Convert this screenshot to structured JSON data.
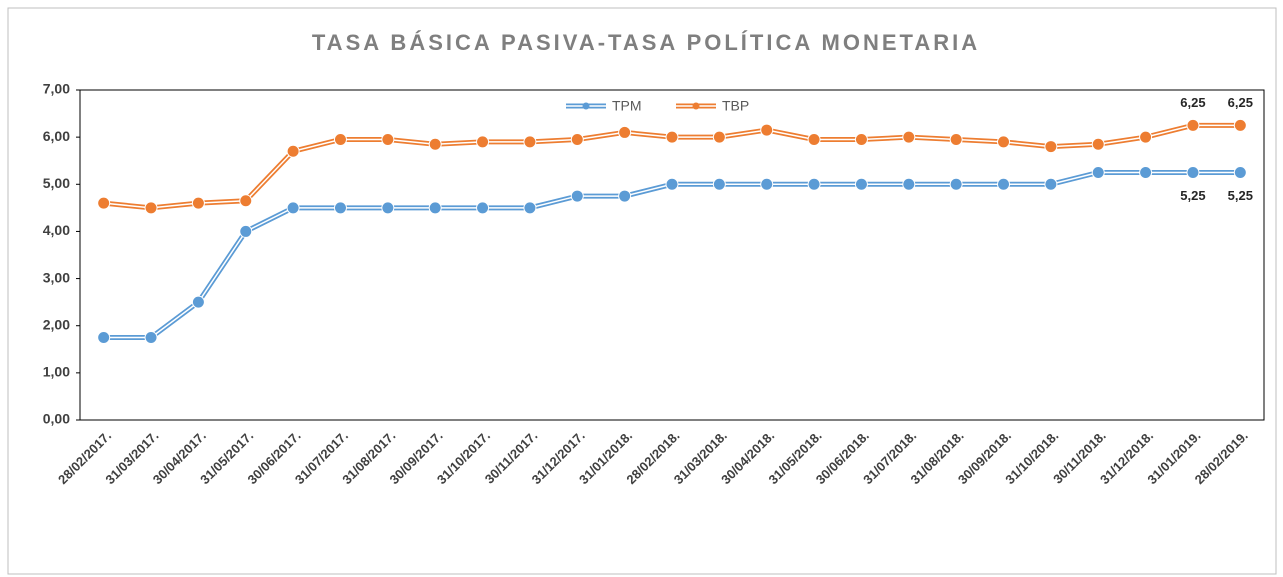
{
  "chart_data": {
    "type": "line",
    "title": "TASA BÁSICA PASIVA-TASA POLÍTICA MONETARIA",
    "categories": [
      "28/02/2017.",
      "31/03/2017.",
      "30/04/2017.",
      "31/05/2017.",
      "30/06/2017.",
      "31/07/2017.",
      "31/08/2017.",
      "30/09/2017.",
      "31/10/2017.",
      "30/11/2017.",
      "31/12/2017.",
      "31/01/2018.",
      "28/02/2018.",
      "31/03/2018.",
      "30/04/2018.",
      "31/05/2018.",
      "30/06/2018.",
      "31/07/2018.",
      "31/08/2018.",
      "30/09/2018.",
      "31/10/2018.",
      "30/11/2018.",
      "31/12/2018.",
      "31/01/2019.",
      "28/02/2019."
    ],
    "series": [
      {
        "name": "TPM",
        "color": "#5b9bd5",
        "values": [
          1.75,
          1.75,
          2.5,
          4.0,
          4.5,
          4.5,
          4.5,
          4.5,
          4.5,
          4.5,
          4.75,
          4.75,
          5.0,
          5.0,
          5.0,
          5.0,
          5.0,
          5.0,
          5.0,
          5.0,
          5.0,
          5.25,
          5.25,
          5.25,
          5.25
        ],
        "value_labels": [
          null,
          null,
          null,
          null,
          null,
          null,
          null,
          null,
          null,
          null,
          null,
          null,
          null,
          null,
          null,
          null,
          null,
          null,
          null,
          null,
          null,
          null,
          null,
          "5,25",
          "5,25"
        ]
      },
      {
        "name": "TBP",
        "color": "#ed7d31",
        "values": [
          4.6,
          4.5,
          4.6,
          4.65,
          5.7,
          5.95,
          5.95,
          5.85,
          5.9,
          5.9,
          5.95,
          6.1,
          6.0,
          6.0,
          6.15,
          5.95,
          5.95,
          6.0,
          5.95,
          5.9,
          5.8,
          5.85,
          6.0,
          6.25,
          6.25
        ],
        "value_labels": [
          null,
          null,
          null,
          null,
          null,
          null,
          null,
          null,
          null,
          null,
          null,
          null,
          null,
          null,
          null,
          null,
          null,
          null,
          null,
          null,
          null,
          null,
          null,
          "6,25",
          "6,25"
        ]
      }
    ],
    "ylim": [
      0,
      7
    ],
    "yticks": [
      {
        "value": 0,
        "label": "0,00"
      },
      {
        "value": 1,
        "label": "1,00"
      },
      {
        "value": 2,
        "label": "2,00"
      },
      {
        "value": 3,
        "label": "3,00"
      },
      {
        "value": 4,
        "label": "4,00"
      },
      {
        "value": 5,
        "label": "5,00"
      },
      {
        "value": 6,
        "label": "6,00"
      },
      {
        "value": 7,
        "label": "7,00"
      }
    ],
    "legend": "top"
  }
}
